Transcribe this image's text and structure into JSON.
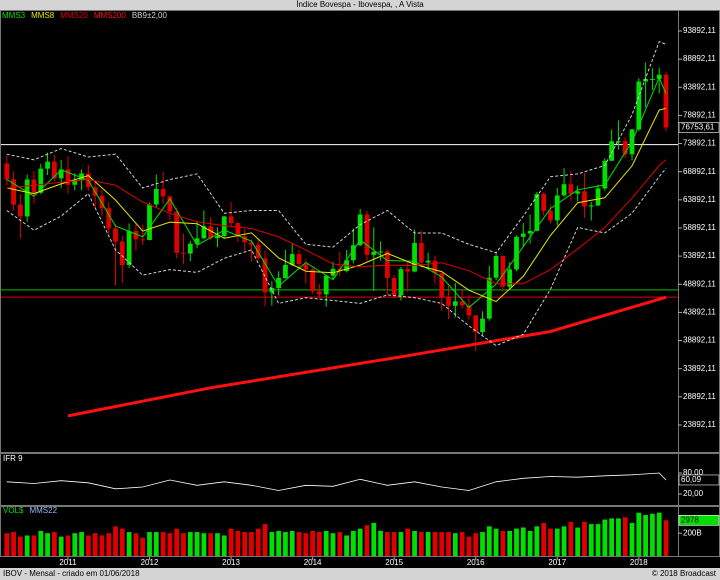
{
  "chart_data": [
    {
      "type": "candlestick",
      "title": "Índice Bovespa - Ibovespa, , A Vista",
      "categories": [
        null,
        null,
        null,
        null,
        null,
        null,
        null,
        null,
        null,
        "2011",
        null,
        null,
        null,
        null,
        null,
        null,
        null,
        null,
        null,
        null,
        null,
        "2012",
        null,
        null,
        null,
        null,
        null,
        null,
        null,
        null,
        null,
        null,
        null,
        "2013",
        null,
        null,
        null,
        null,
        null,
        null,
        null,
        null,
        null,
        null,
        null,
        "2014",
        null,
        null,
        null,
        null,
        null,
        null,
        null,
        null,
        null,
        null,
        null,
        "2015",
        null,
        null,
        null,
        null,
        null,
        null,
        null,
        null,
        null,
        null,
        null,
        "2016",
        null,
        null,
        null,
        null,
        null,
        null,
        null,
        null,
        null,
        null,
        null,
        "2017",
        null,
        null,
        null,
        null,
        null,
        null,
        null,
        null,
        null,
        null,
        null,
        "2018",
        null,
        null,
        null,
        null
      ],
      "open": [
        70370,
        67530,
        63050,
        60940,
        67520,
        65150,
        69430,
        70670,
        67710,
        69300,
        66570,
        67380,
        68590,
        66130,
        64620,
        62400,
        58820,
        56490,
        52320,
        58340,
        56870,
        56750,
        63070,
        65810,
        64510,
        61820,
        54490,
        54350,
        56100,
        57060,
        59180,
        57070,
        57470,
        60950,
        59760,
        57420,
        56350,
        55910,
        53510,
        47460,
        48230,
        50010,
        52340,
        54250,
        52480,
        51510,
        47640,
        47090,
        50410,
        51630,
        51240,
        53170,
        55830,
        61290,
        54120,
        54630,
        54720,
        50010,
        46910,
        51580,
        51150,
        56230,
        52760,
        53080,
        50860,
        46630,
        45060,
        45870,
        45120,
        43350,
        40410,
        42790,
        50060,
        53910,
        48470,
        51530,
        57310,
        57900,
        58370,
        64920,
        61910,
        60230,
        64670,
        66660,
        64980,
        65400,
        62710,
        62900,
        65920,
        70840,
        74290,
        74310,
        71970,
        76400,
        84910,
        85350,
        85370,
        86120
      ],
      "high": [
        71800,
        69000,
        64900,
        68400,
        69000,
        70300,
        72300,
        71900,
        71000,
        71600,
        68600,
        69300,
        70100,
        67100,
        65700,
        63400,
        59600,
        57500,
        59700,
        59500,
        59500,
        63400,
        68400,
        68900,
        64600,
        62500,
        57900,
        56600,
        60000,
        62000,
        60800,
        59000,
        61000,
        63500,
        59900,
        58700,
        56800,
        57000,
        54900,
        49400,
        51200,
        55000,
        56100,
        55000,
        53300,
        51800,
        48900,
        50500,
        52900,
        54700,
        55000,
        58800,
        62300,
        62000,
        59000,
        56500,
        55100,
        50500,
        52000,
        53000,
        58600,
        58400,
        54500,
        54000,
        51000,
        49000,
        49100,
        48100,
        47000,
        43500,
        44100,
        52200,
        54500,
        54000,
        52800,
        57600,
        59800,
        61300,
        65300,
        65300,
        63000,
        66000,
        69500,
        69000,
        66400,
        68700,
        63500,
        66600,
        71300,
        76400,
        78000,
        75000,
        76500,
        85500,
        88300,
        87300,
        87400,
        86600
      ],
      "low": [
        66500,
        62000,
        57000,
        60000,
        63200,
        64900,
        68300,
        67200,
        66000,
        65000,
        65600,
        65600,
        65500,
        62400,
        61100,
        57800,
        48700,
        49100,
        51800,
        54900,
        55900,
        56700,
        62600,
        63200,
        60300,
        53500,
        52500,
        53000,
        55300,
        56900,
        56700,
        55500,
        57200,
        59000,
        56400,
        54800,
        52900,
        53300,
        45000,
        45100,
        46900,
        49900,
        52100,
        51500,
        49000,
        47200,
        46400,
        44900,
        49800,
        50300,
        51000,
        52600,
        55700,
        53000,
        47700,
        53100,
        47000,
        46400,
        46000,
        47500,
        51000,
        52300,
        51500,
        49100,
        44200,
        42700,
        43000,
        44500,
        42600,
        37000,
        39900,
        42400,
        49600,
        47600,
        48000,
        51200,
        55600,
        56100,
        58300,
        61100,
        59700,
        59300,
        64500,
        63700,
        63600,
        60700,
        60200,
        62800,
        65500,
        70800,
        72800,
        71300,
        70900,
        76100,
        80300,
        83400,
        82800,
        76100
      ],
      "close": [
        67530,
        63050,
        60940,
        67520,
        65150,
        69430,
        70670,
        67710,
        69300,
        66570,
        67380,
        68590,
        66130,
        64620,
        62400,
        58820,
        56490,
        52320,
        58340,
        56870,
        56750,
        63070,
        65810,
        64510,
        61820,
        54490,
        54350,
        56100,
        57060,
        59180,
        57070,
        57470,
        60950,
        59760,
        57420,
        56350,
        55910,
        53510,
        47460,
        48230,
        50010,
        52340,
        54250,
        52480,
        51510,
        47640,
        47090,
        50410,
        51630,
        51240,
        53170,
        55830,
        61290,
        54120,
        54630,
        54720,
        50010,
        46910,
        51580,
        51150,
        56230,
        52760,
        53080,
        50860,
        46630,
        45060,
        45870,
        45120,
        43350,
        40410,
        42790,
        50060,
        53910,
        48470,
        51530,
        57310,
        57900,
        58370,
        64920,
        61910,
        60230,
        64670,
        66660,
        64980,
        65400,
        62710,
        62900,
        65920,
        70840,
        74290,
        74310,
        71970,
        76400,
        84910,
        85350,
        85370,
        86120,
        76753.61
      ],
      "up_color": "#00e000",
      "down_color": "#e00000",
      "ylim": [
        19090,
        97620
      ],
      "yticks": [
        {
          "value": 23892.11,
          "label": "23892,11"
        },
        {
          "value": 28892.11,
          "label": "28892,11"
        },
        {
          "value": 33892.11,
          "label": "33892,11"
        },
        {
          "value": 38892.11,
          "label": "38892,11"
        },
        {
          "value": 43892.11,
          "label": "43892,11"
        },
        {
          "value": 48892.11,
          "label": "48892,11"
        },
        {
          "value": 53892.11,
          "label": "53892,11"
        },
        {
          "value": 58892.11,
          "label": "58892,11"
        },
        {
          "value": 63892.11,
          "label": "63892,11"
        },
        {
          "value": 68892.11,
          "label": "68892,11"
        },
        {
          "value": 73892.11,
          "label": "73892,11"
        },
        {
          "value": 78892.11,
          "label": "78892,11"
        },
        {
          "value": 83892.11,
          "label": "83892,11"
        },
        {
          "value": 88892.11,
          "label": "88892,11"
        },
        {
          "value": 93892.11,
          "label": "93892,11"
        }
      ],
      "last_label": "76753,61",
      "hlines": [
        {
          "value": 73700,
          "color": "#ffffff"
        },
        {
          "value": 47900,
          "color": "#00c000"
        },
        {
          "value": 46600,
          "color": "#e00000"
        }
      ],
      "overlays": [
        {
          "name": "MMS3",
          "color": "#00e000",
          "x": [
            0,
            4,
            8,
            12,
            16,
            20,
            24,
            28,
            32,
            36,
            40,
            44,
            48,
            52,
            56,
            60,
            64,
            68,
            72,
            76,
            80,
            84,
            88,
            92,
            96,
            97
          ],
          "values": [
            67500,
            64540,
            69230,
            67370,
            59240,
            57320,
            64050,
            55840,
            58500,
            56560,
            48570,
            52750,
            49710,
            56760,
            53120,
            52990,
            50190,
            44780,
            48920,
            55580,
            62350,
            65680,
            66550,
            74230,
            85610,
            82750
          ]
        },
        {
          "name": "MMS8",
          "color": "#e8e800",
          "x": [
            0,
            4,
            8,
            12,
            16,
            20,
            24,
            28,
            32,
            36,
            40,
            44,
            48,
            52,
            56,
            60,
            64,
            68,
            72,
            76,
            80,
            84,
            88,
            92,
            96,
            97
          ],
          "values": [
            66000,
            65000,
            66720,
            68220,
            63870,
            58330,
            59940,
            59650,
            57080,
            58010,
            53580,
            51220,
            50920,
            52290,
            54380,
            52420,
            51150,
            47840,
            45820,
            50300,
            57580,
            63390,
            64260,
            69920,
            79840,
            80150
          ]
        },
        {
          "name": "MMS20",
          "color": "#e00000",
          "x": [
            0,
            4,
            8,
            12,
            16,
            20,
            24,
            28,
            32,
            36,
            40,
            44,
            48,
            52,
            56,
            60,
            64,
            68,
            72,
            76,
            80,
            84,
            88,
            92,
            96,
            97
          ],
          "values": [
            66000,
            66500,
            67000,
            67500,
            66500,
            63500,
            61500,
            60000,
            59300,
            58800,
            57300,
            55000,
            52500,
            52000,
            52300,
            52200,
            52700,
            51300,
            49000,
            49000,
            51500,
            55200,
            59000,
            64200,
            70000,
            71000
          ]
        },
        {
          "name": "MMS200",
          "color": "#ff1010",
          "width": 3,
          "x": [
            9,
            30,
            58,
            80,
            97
          ],
          "values": [
            25500,
            30500,
            36000,
            40500,
            46600
          ]
        },
        {
          "name": "BB9±2,00",
          "color": "#d0d0d0",
          "dashed": true,
          "x": [
            0,
            4,
            8,
            12,
            16,
            20,
            24,
            28,
            32,
            36,
            40,
            44,
            48,
            52,
            56,
            60,
            64,
            68,
            72,
            76,
            80,
            84,
            88,
            92,
            96,
            97
          ],
          "values": [
            72000,
            71000,
            73000,
            71500,
            72000,
            66000,
            67500,
            68500,
            61500,
            62000,
            62000,
            56000,
            55500,
            59500,
            62000,
            58000,
            58000,
            56000,
            54500,
            61000,
            68000,
            68500,
            70000,
            79000,
            92000,
            91500
          ],
          "lower": [
            62000,
            58500,
            61000,
            65000,
            55000,
            50500,
            51500,
            51000,
            53500,
            55000,
            45500,
            46500,
            46000,
            45500,
            47000,
            46500,
            45500,
            41500,
            38000,
            40000,
            48000,
            59000,
            58000,
            61500,
            68000,
            69500
          ]
        }
      ]
    },
    {
      "type": "line",
      "title": "IFR 9",
      "color": "#ffffff",
      "x": [
        0,
        4,
        8,
        12,
        16,
        20,
        24,
        28,
        32,
        36,
        40,
        44,
        48,
        52,
        56,
        60,
        64,
        68,
        72,
        76,
        80,
        84,
        88,
        92,
        96,
        97
      ],
      "values": [
        55,
        50,
        58,
        52,
        35,
        40,
        60,
        45,
        55,
        45,
        30,
        45,
        42,
        62,
        45,
        55,
        40,
        30,
        55,
        65,
        70,
        68,
        72,
        75,
        80,
        60.09
      ],
      "ylim": [
        0,
        100
      ],
      "yticks": [
        {
          "value": 80,
          "label": "80,00"
        },
        {
          "value": 20,
          "label": "20,00"
        }
      ],
      "last_label": "60,09"
    },
    {
      "type": "bar",
      "title": "VOL$",
      "ma_label": "MMS22",
      "values": [
        200,
        210,
        170,
        180,
        180,
        220,
        200,
        210,
        170,
        180,
        200,
        210,
        180,
        200,
        180,
        200,
        260,
        240,
        210,
        200,
        160,
        210,
        210,
        210,
        200,
        240,
        200,
        210,
        210,
        200,
        200,
        200,
        180,
        240,
        220,
        210,
        210,
        240,
        280,
        210,
        220,
        210,
        220,
        210,
        200,
        220,
        210,
        220,
        200,
        210,
        180,
        220,
        240,
        270,
        290,
        220,
        210,
        210,
        210,
        240,
        220,
        210,
        210,
        210,
        210,
        210,
        200,
        210,
        170,
        200,
        210,
        260,
        240,
        220,
        220,
        240,
        250,
        220,
        260,
        290,
        240,
        240,
        260,
        300,
        250,
        300,
        280,
        280,
        320,
        330,
        330,
        340,
        290,
        380,
        360,
        370,
        380,
        313
      ],
      "ylim": [
        0,
        430
      ],
      "yticks": [
        {
          "value": 200,
          "label": "200B"
        }
      ],
      "last_label": "2978"
    }
  ],
  "footer": {
    "left": "IBOV - Mensal - criado em 01/06/2018",
    "right": "© 2018 Broadcast"
  }
}
